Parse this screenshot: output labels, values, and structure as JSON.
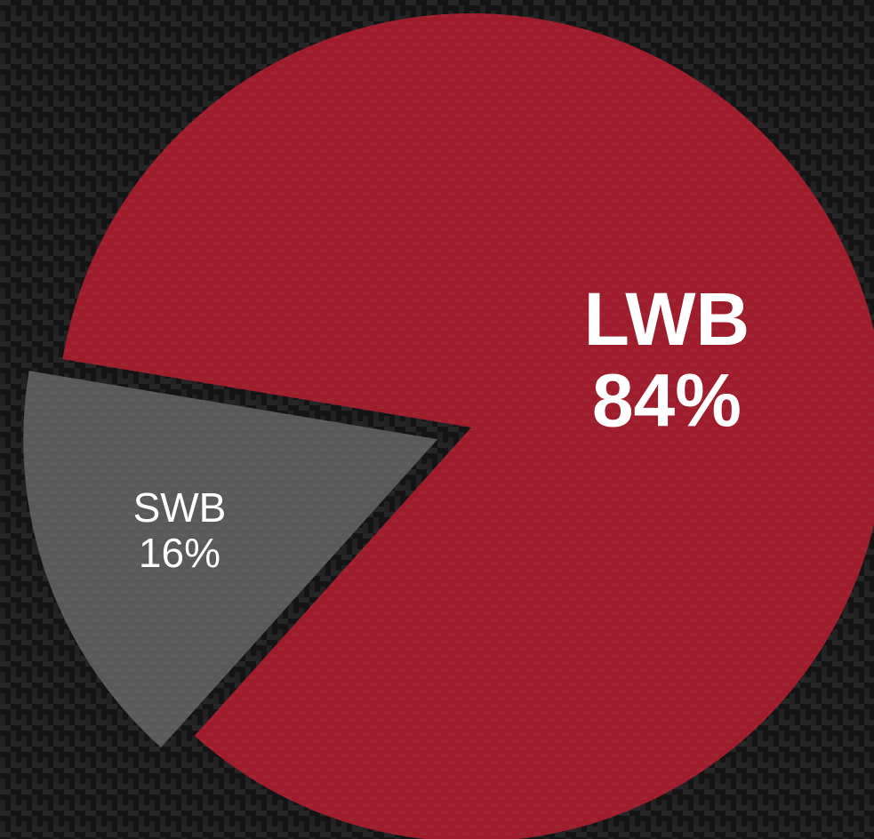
{
  "chart_data": {
    "type": "pie",
    "categories": [
      "LWB",
      "SWB"
    ],
    "values": [
      84,
      16
    ],
    "value_labels": [
      "84%",
      "16%"
    ],
    "colors": [
      "#9e1c2c",
      "#595959"
    ]
  }
}
